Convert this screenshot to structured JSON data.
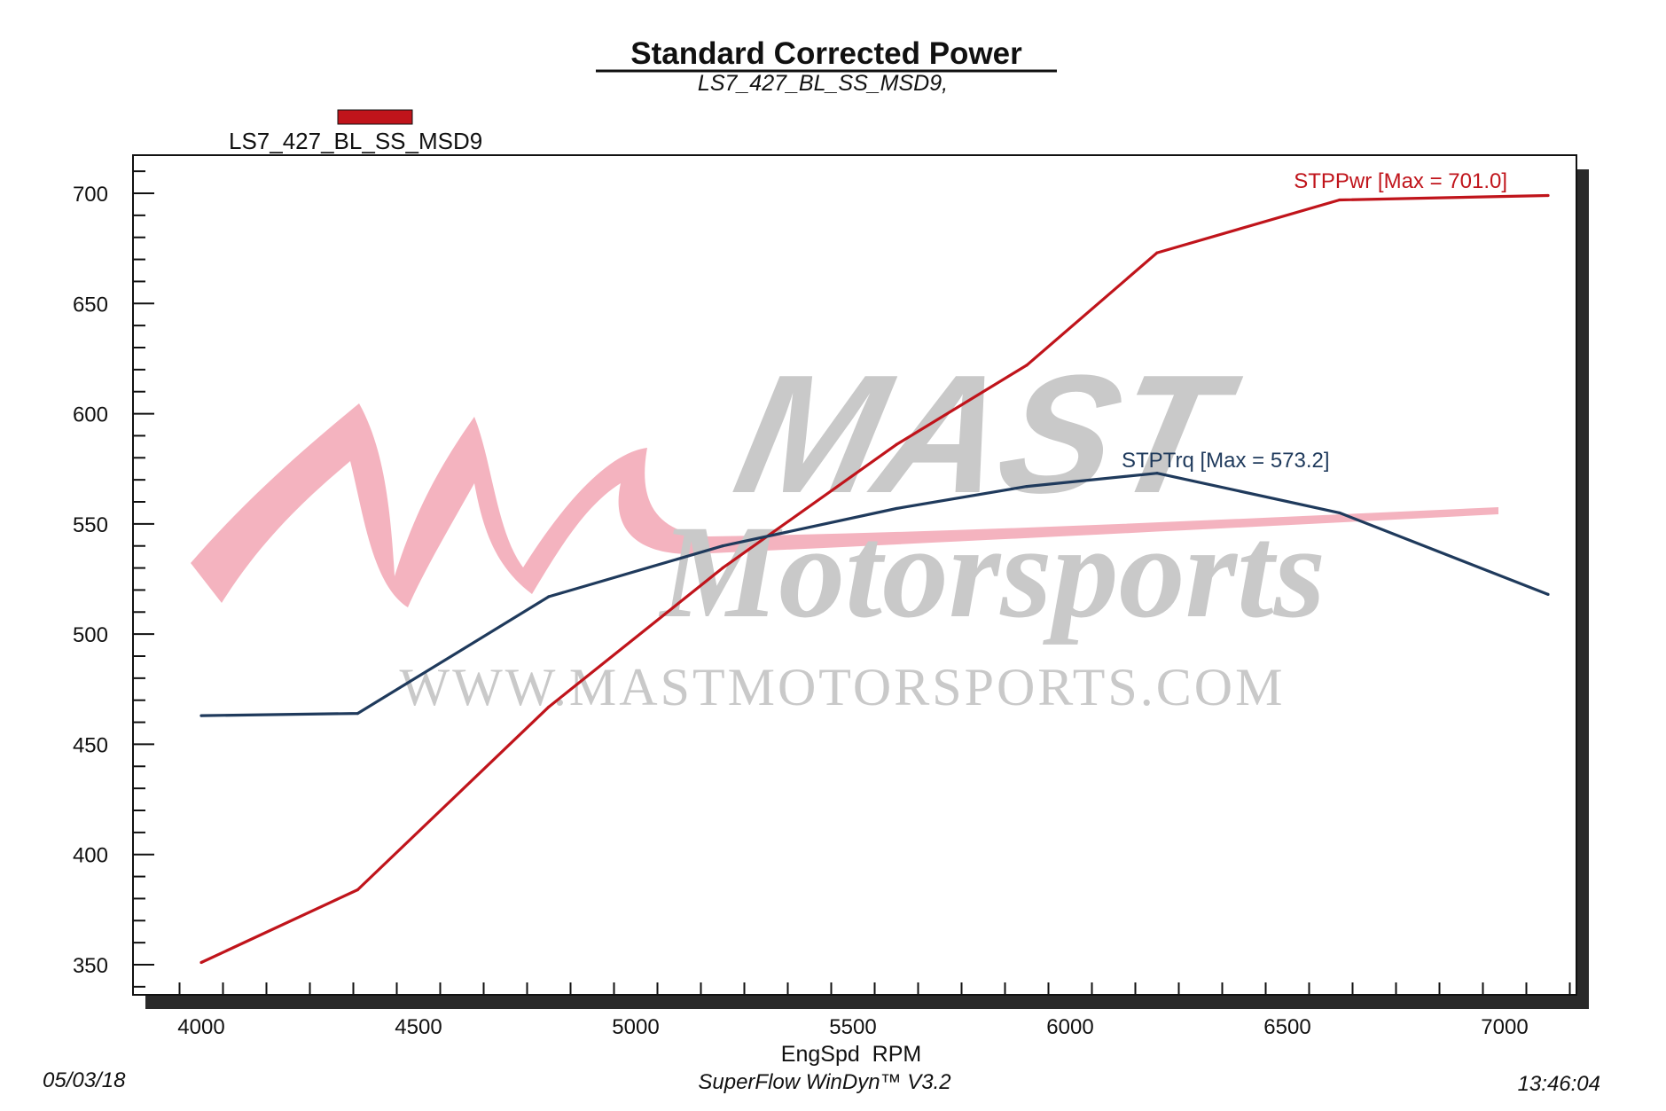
{
  "colors": {
    "power": "#c0141b",
    "torque": "#1f3a5c",
    "frame": "#111111",
    "shadow": "#2a2a2a",
    "watermark_pink": "#f2a6b4",
    "watermark_gray": "#c9c9c9"
  },
  "watermark": {
    "brand": "MAST",
    "script": "Motorsports",
    "url": "WWW.MASTMOTORSPORTS.COM"
  },
  "footer": {
    "date": "05/03/18",
    "software": "SuperFlow WinDyn™ V3.2",
    "time": "13:46:04"
  },
  "chart_data": {
    "type": "line",
    "title": "Standard Corrected Power",
    "subtitle": "LS7_427_BL_SS_MSD9,",
    "legend": [
      "LS7_427_BL_SS_MSD9"
    ],
    "legend_position": "top-left",
    "xlabel": "EngSpd  RPM",
    "ylabel": "",
    "xlim": [
      3990,
      7230
    ],
    "ylim": [
      335,
      718
    ],
    "x_ticks": [
      4000,
      4500,
      5000,
      5500,
      6000,
      6500,
      7000
    ],
    "y_ticks": [
      350,
      400,
      450,
      500,
      550,
      600,
      650,
      700
    ],
    "grid": false,
    "series": [
      {
        "name": "STPPwr",
        "label": "STPPwr [Max = 701.0]",
        "color": "#c0141b",
        "x": [
          4000,
          4360,
          4800,
          5200,
          5600,
          5900,
          6200,
          6620,
          7100
        ],
        "y": [
          351,
          384,
          467,
          530,
          586,
          622,
          673,
          697,
          699
        ]
      },
      {
        "name": "STPTrq",
        "label": "STPTrq [Max = 573.2]",
        "color": "#1f3a5c",
        "x": [
          4000,
          4360,
          4800,
          5200,
          5600,
          5900,
          6200,
          6620,
          7100
        ],
        "y": [
          463,
          464,
          517,
          540,
          557,
          567,
          573,
          555,
          518
        ]
      }
    ]
  }
}
